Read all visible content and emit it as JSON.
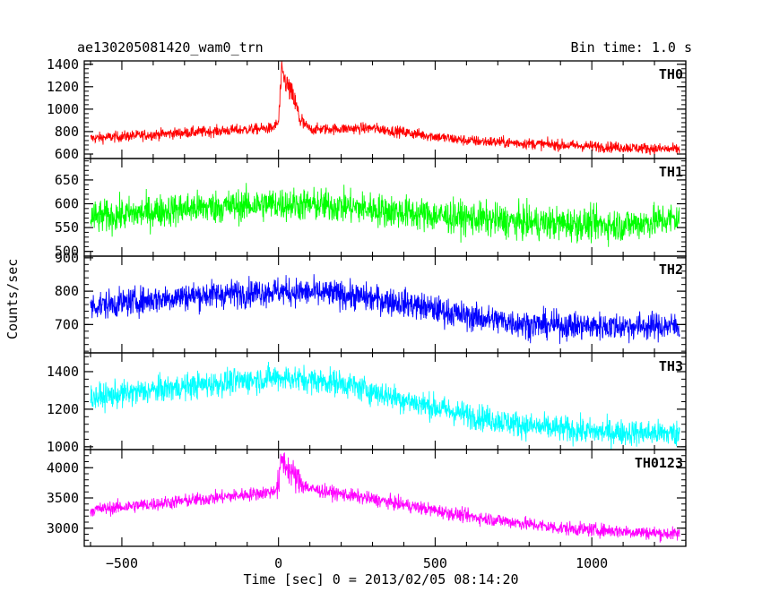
{
  "header": {
    "title": "ae130205081420_wam0_trn",
    "bin_time": "Bin time: 1.0 s"
  },
  "chart_data": {
    "type": "line",
    "xlabel": "Time [sec] 0 = 2013/02/05 08:14:20",
    "ylabel": "Counts/sec",
    "xlim": [
      -620,
      1300
    ],
    "x_ticks": [
      -500,
      0,
      500,
      1000
    ],
    "x_range_data": [
      -600,
      1280
    ],
    "panels": [
      {
        "name": "TH0",
        "color": "#ff0000",
        "ylim": [
          560,
          1430
        ],
        "y_ticks": [
          600,
          800,
          1000,
          1200,
          1400
        ],
        "trend": [
          [
            -600,
            740
          ],
          [
            -300,
            790
          ],
          [
            -20,
            830
          ],
          [
            0,
            880
          ],
          [
            10,
            1330
          ],
          [
            25,
            1230
          ],
          [
            50,
            1080
          ],
          [
            70,
            900
          ],
          [
            100,
            820
          ],
          [
            300,
            830
          ],
          [
            600,
            720
          ],
          [
            900,
            680
          ],
          [
            1280,
            640
          ]
        ],
        "noise": 35
      },
      {
        "name": "TH1",
        "color": "#00ff00",
        "ylim": [
          490,
          695
        ],
        "y_ticks": [
          500,
          550,
          600,
          650
        ],
        "trend": [
          [
            -600,
            570
          ],
          [
            -300,
            590
          ],
          [
            0,
            600
          ],
          [
            200,
            595
          ],
          [
            500,
            575
          ],
          [
            800,
            560
          ],
          [
            1100,
            555
          ],
          [
            1280,
            570
          ]
        ],
        "noise": 25
      },
      {
        "name": "TH2",
        "color": "#0000ff",
        "ylim": [
          615,
          905
        ],
        "y_ticks": [
          700,
          800,
          900
        ],
        "trend": [
          [
            -600,
            755
          ],
          [
            -300,
            785
          ],
          [
            0,
            800
          ],
          [
            200,
            790
          ],
          [
            400,
            765
          ],
          [
            600,
            725
          ],
          [
            800,
            700
          ],
          [
            1000,
            695
          ],
          [
            1280,
            695
          ]
        ],
        "noise": 30
      },
      {
        "name": "TH3",
        "color": "#00ffff",
        "ylim": [
          985,
          1500
        ],
        "y_ticks": [
          1000,
          1200,
          1400
        ],
        "trend": [
          [
            -600,
            1260
          ],
          [
            -300,
            1320
          ],
          [
            0,
            1370
          ],
          [
            200,
            1340
          ],
          [
            400,
            1250
          ],
          [
            600,
            1170
          ],
          [
            800,
            1110
          ],
          [
            1000,
            1080
          ],
          [
            1280,
            1070
          ]
        ],
        "noise": 50
      },
      {
        "name": "TH0123",
        "color": "#ff00ff",
        "ylim": [
          2700,
          4300
        ],
        "y_ticks": [
          3000,
          3500,
          4000
        ],
        "trend": [
          [
            -600,
            3300
          ],
          [
            -300,
            3450
          ],
          [
            -20,
            3600
          ],
          [
            0,
            3700
          ],
          [
            10,
            4150
          ],
          [
            30,
            4000
          ],
          [
            60,
            3800
          ],
          [
            100,
            3650
          ],
          [
            300,
            3480
          ],
          [
            600,
            3200
          ],
          [
            900,
            3000
          ],
          [
            1280,
            2900
          ]
        ],
        "noise": 80
      }
    ]
  }
}
